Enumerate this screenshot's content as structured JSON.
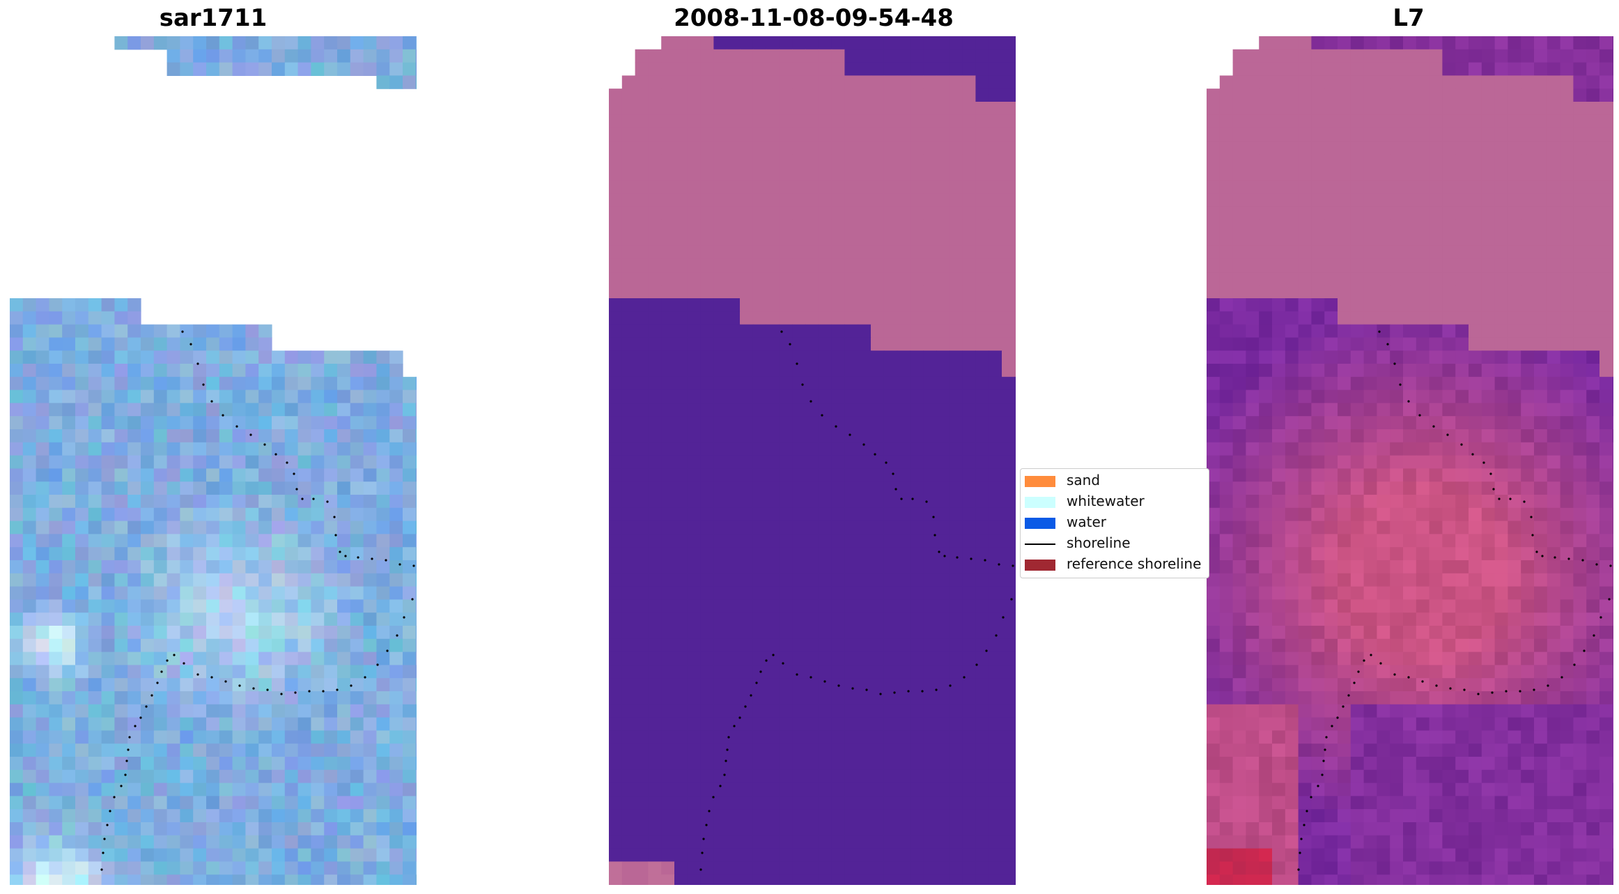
{
  "panels": [
    {
      "title": "sar1711",
      "image": "sar-rgb-composite"
    },
    {
      "title": "2008-11-08-09-54-48",
      "image": "classified-image"
    },
    {
      "title": "L7",
      "image": "ndwi-index-image"
    }
  ],
  "legend": {
    "items": [
      {
        "label": "sand",
        "color": "#ff8c3c",
        "kind": "patch"
      },
      {
        "label": "whitewater",
        "color": "#ccffff",
        "kind": "patch"
      },
      {
        "label": "water",
        "color": "#0a5ae6",
        "kind": "patch"
      },
      {
        "label": "shoreline",
        "color": "#000000",
        "kind": "line"
      },
      {
        "label": "reference shoreline",
        "color": "#a02832",
        "kind": "patch"
      }
    ]
  },
  "colors": {
    "sar_base": "#7eaee0",
    "class_land": "#ba6796",
    "class_water": "#532397",
    "index_land": "#bb6797",
    "index_water": "#7a2aa0",
    "shoreline_dots": "#000000"
  }
}
